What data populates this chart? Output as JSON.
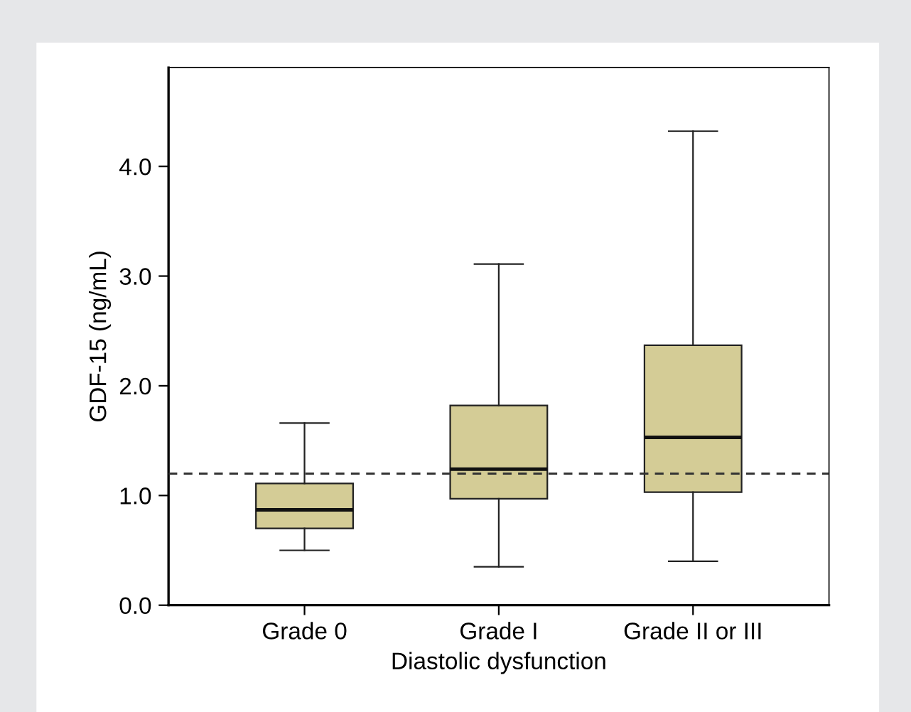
{
  "chart_data": {
    "type": "box",
    "xlabel": "Diastolic dysfunction",
    "ylabel": "GDF-15 (ng/mL)",
    "categories": [
      "Grade 0",
      "Grade I",
      "Grade II or III"
    ],
    "boxes": [
      {
        "low": 0.5,
        "q1": 0.7,
        "median": 0.87,
        "q3": 1.11,
        "high": 1.66
      },
      {
        "low": 0.35,
        "q1": 0.97,
        "median": 1.24,
        "q3": 1.82,
        "high": 3.11
      },
      {
        "low": 0.4,
        "q1": 1.03,
        "median": 1.53,
        "q3": 2.37,
        "high": 4.32
      }
    ],
    "color": "#d4cc96",
    "ylim": [
      0,
      4.9
    ],
    "yticks": [
      {
        "value": 0,
        "label": "0.0"
      },
      {
        "value": 1,
        "label": "1.0"
      },
      {
        "value": 2,
        "label": "2.0"
      },
      {
        "value": 3,
        "label": "3.0"
      },
      {
        "value": 4,
        "label": "4.0"
      }
    ],
    "ref_lines": [
      {
        "axis": "y",
        "value": 1.2,
        "line_style": "dashed",
        "color": "#333333"
      }
    ],
    "grid": false,
    "legend": false
  }
}
